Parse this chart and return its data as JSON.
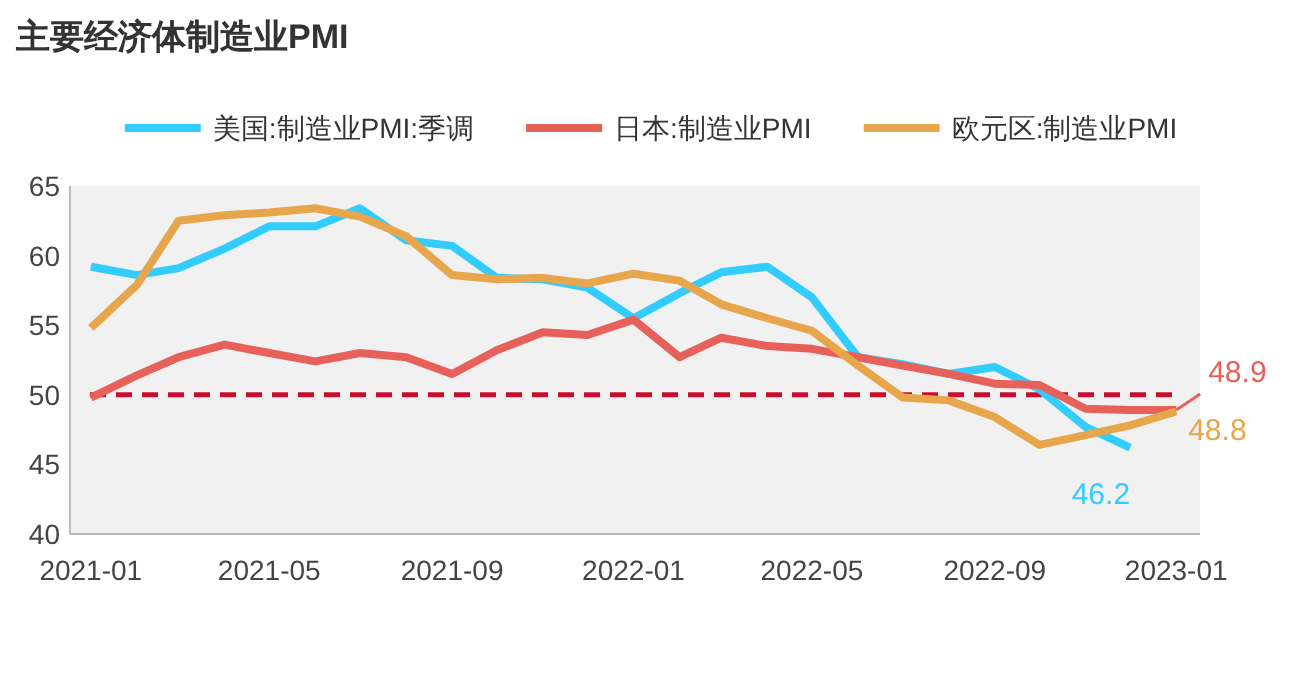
{
  "chart_data": {
    "type": "line",
    "title": "主要经济体制造业PMI",
    "xlim": [
      "2020-12-18",
      "2023-01-17"
    ],
    "xticks": [
      "2021-01",
      "2021-05",
      "2021-09",
      "2022-01",
      "2022-05",
      "2022-09",
      "2023-01"
    ],
    "ylim": [
      40,
      65
    ],
    "yticks": [
      40,
      45,
      50,
      55,
      60,
      65
    ],
    "grid": false,
    "legend": "top",
    "line_style": "solid",
    "marker": "none",
    "ref_lines": [
      {
        "axis": "y",
        "value": 50,
        "color": "#c8102e",
        "line_style": "dashed"
      }
    ],
    "series": [
      {
        "name": "美国:制造业PMI:季调",
        "color": "#33ccff",
        "x": [
          "2021-01",
          "2021-02",
          "2021-03",
          "2021-04",
          "2021-05",
          "2021-06",
          "2021-07",
          "2021-08",
          "2021-09",
          "2021-10",
          "2021-11",
          "2021-12",
          "2022-01",
          "2022-02",
          "2022-03",
          "2022-04",
          "2022-05",
          "2022-06",
          "2022-07",
          "2022-08",
          "2022-09",
          "2022-10",
          "2022-11",
          "2022-12"
        ],
        "values": [
          59.2,
          58.6,
          59.1,
          60.5,
          62.1,
          62.1,
          63.4,
          61.1,
          60.7,
          58.4,
          58.3,
          57.7,
          55.5,
          57.3,
          58.8,
          59.2,
          57.0,
          52.7,
          52.2,
          51.5,
          52.0,
          50.4,
          47.7,
          46.2
        ],
        "value_labels": [
          null,
          null,
          null,
          null,
          null,
          null,
          null,
          null,
          null,
          null,
          null,
          null,
          null,
          null,
          null,
          null,
          null,
          null,
          null,
          null,
          null,
          null,
          null,
          "46.2"
        ]
      },
      {
        "name": "日本:制造业PMI",
        "color": "#e8605a",
        "x": [
          "2021-01",
          "2021-02",
          "2021-03",
          "2021-04",
          "2021-05",
          "2021-06",
          "2021-07",
          "2021-08",
          "2021-09",
          "2021-10",
          "2021-11",
          "2021-12",
          "2022-01",
          "2022-02",
          "2022-03",
          "2022-04",
          "2022-05",
          "2022-06",
          "2022-07",
          "2022-08",
          "2022-09",
          "2022-10",
          "2022-11",
          "2022-12",
          "2023-01"
        ],
        "values": [
          49.8,
          51.4,
          52.7,
          53.6,
          53.0,
          52.4,
          53.0,
          52.7,
          51.5,
          53.2,
          54.5,
          54.3,
          55.4,
          52.7,
          54.1,
          53.5,
          53.3,
          52.7,
          52.1,
          51.5,
          50.8,
          50.7,
          49.0,
          48.9,
          48.9
        ],
        "value_labels": [
          null,
          null,
          null,
          null,
          null,
          null,
          null,
          null,
          null,
          null,
          null,
          null,
          null,
          null,
          null,
          null,
          null,
          null,
          null,
          null,
          null,
          null,
          null,
          null,
          "48.9"
        ]
      },
      {
        "name": "欧元区:制造业PMI",
        "color": "#e8a64c",
        "x": [
          "2021-01",
          "2021-02",
          "2021-03",
          "2021-04",
          "2021-05",
          "2021-06",
          "2021-07",
          "2021-08",
          "2021-09",
          "2021-10",
          "2021-11",
          "2021-12",
          "2022-01",
          "2022-02",
          "2022-03",
          "2022-04",
          "2022-05",
          "2022-06",
          "2022-07",
          "2022-08",
          "2022-09",
          "2022-10",
          "2022-11",
          "2022-12",
          "2023-01"
        ],
        "values": [
          54.8,
          57.9,
          62.5,
          62.9,
          63.1,
          63.4,
          62.8,
          61.4,
          58.6,
          58.3,
          58.4,
          58.0,
          58.7,
          58.2,
          56.5,
          55.5,
          54.6,
          52.1,
          49.8,
          49.6,
          48.4,
          46.4,
          47.1,
          47.8,
          48.8
        ],
        "value_labels": [
          null,
          null,
          null,
          null,
          null,
          null,
          null,
          null,
          null,
          null,
          null,
          null,
          null,
          null,
          null,
          null,
          null,
          null,
          null,
          null,
          null,
          null,
          null,
          null,
          "48.8"
        ]
      }
    ]
  }
}
